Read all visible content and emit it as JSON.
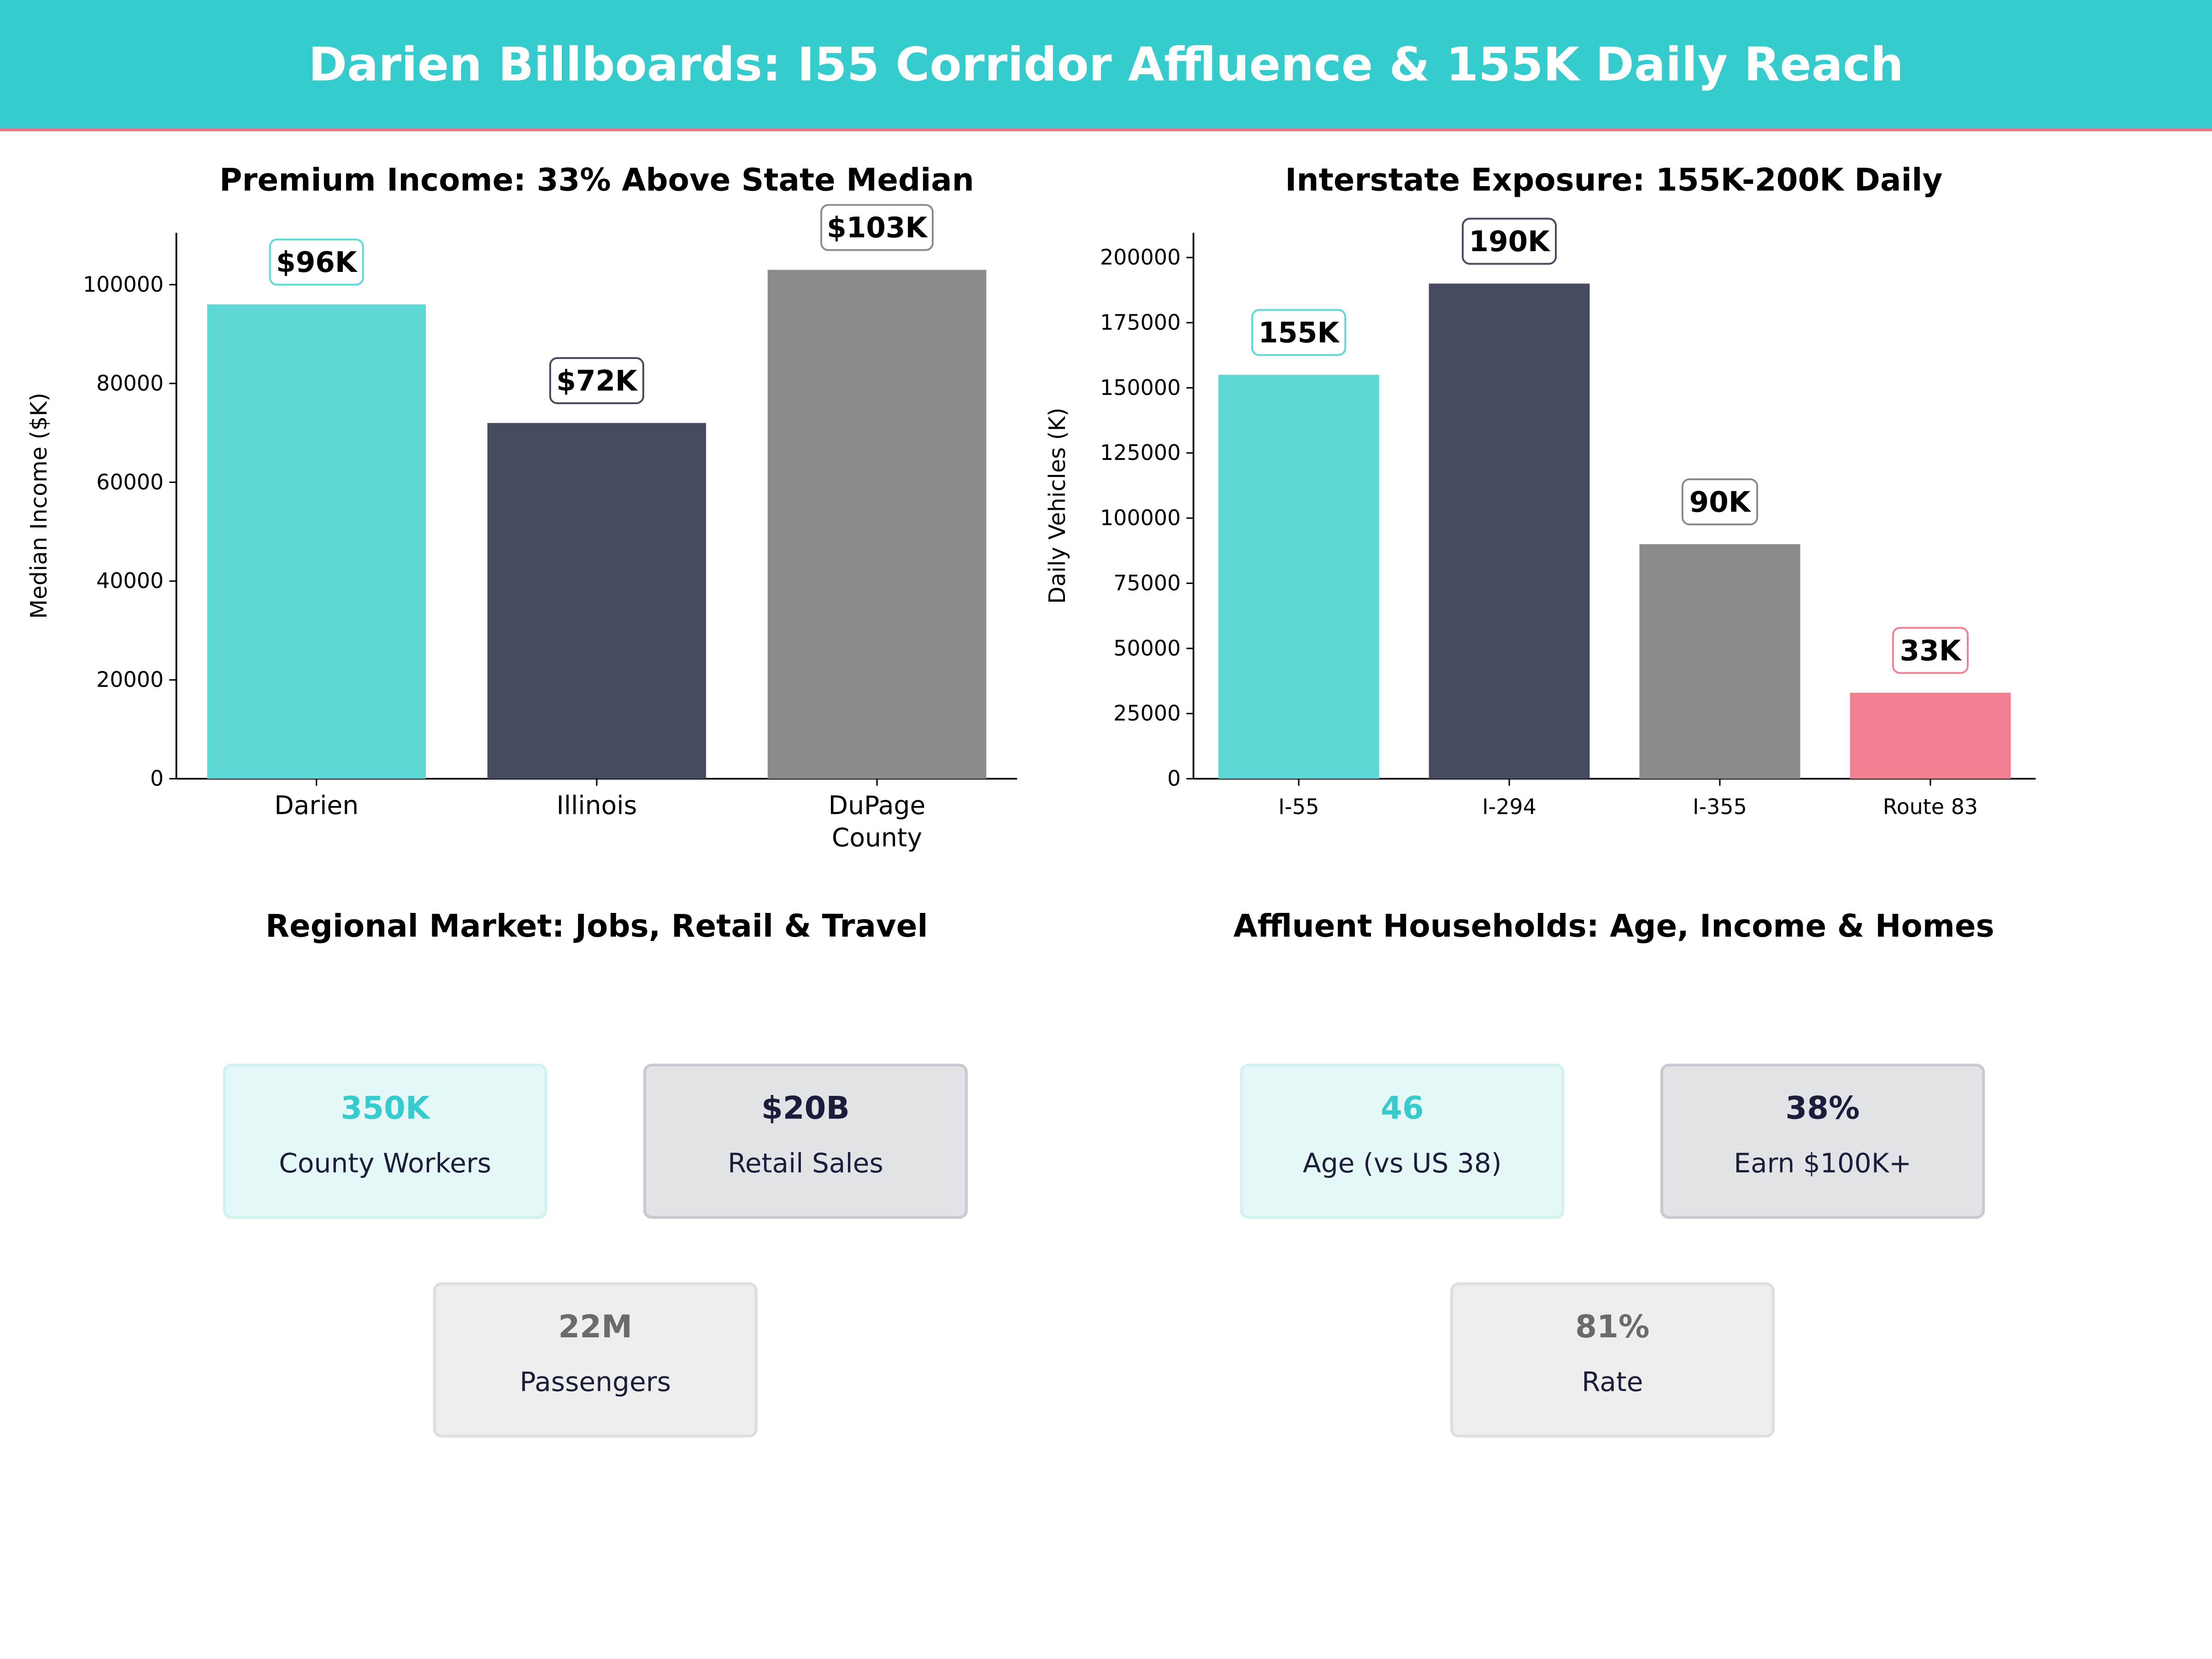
{
  "header": {
    "title": "Darien Billboards: I55 Corridor Affluence & 155K Daily Reach",
    "bg_color": "#36CBCC",
    "accent_line": "#F07080"
  },
  "chart_data": [
    {
      "type": "bar",
      "title": "Premium Income: 33% Above State Median",
      "xlabel": "",
      "ylabel": "Median Income ($K)",
      "categories": [
        "Darien",
        "Illinois",
        "DuPage County"
      ],
      "category_lines": [
        [
          "Darien"
        ],
        [
          "Illinois"
        ],
        [
          "DuPage",
          "County"
        ]
      ],
      "values": [
        96000,
        72000,
        103000
      ],
      "data_labels": [
        "$96K",
        "$72K",
        "$103K"
      ],
      "colors": [
        "#5DD8D4",
        "#464A5F",
        "#8B8B8B"
      ],
      "yticks": [
        0,
        20000,
        40000,
        60000,
        80000,
        100000
      ],
      "ylim": [
        0,
        110500
      ],
      "grid": false
    },
    {
      "type": "bar",
      "title": "Interstate Exposure: 155K-200K Daily",
      "xlabel": "",
      "ylabel": "Daily Vehicles (K)",
      "categories": [
        "I-55",
        "I-294",
        "I-355",
        "Route 83"
      ],
      "values": [
        155000,
        190000,
        90000,
        33000
      ],
      "data_labels": [
        "155K",
        "190K",
        "90K",
        "33K"
      ],
      "colors": [
        "#5DD8D4",
        "#464A5F",
        "#8B8B8B",
        "#F47F92"
      ],
      "yticks": [
        0,
        25000,
        50000,
        75000,
        100000,
        125000,
        150000,
        175000,
        200000
      ],
      "ylim": [
        0,
        209500
      ],
      "grid": false
    }
  ],
  "regional": {
    "title": "Regional Market: Jobs, Retail & Travel",
    "cards": [
      {
        "value": "350K",
        "label": "County Workers"
      },
      {
        "value": "$20B",
        "label": "Retail Sales"
      },
      {
        "value": "22M",
        "label": "Passengers"
      }
    ]
  },
  "households": {
    "title": "Affluent Households: Age, Income & Homes",
    "cards": [
      {
        "value": "46",
        "label": "Age (vs US 38)"
      },
      {
        "value": "38%",
        "label": "Earn $100K+"
      },
      {
        "value": "81%",
        "label": "Rate"
      }
    ]
  }
}
